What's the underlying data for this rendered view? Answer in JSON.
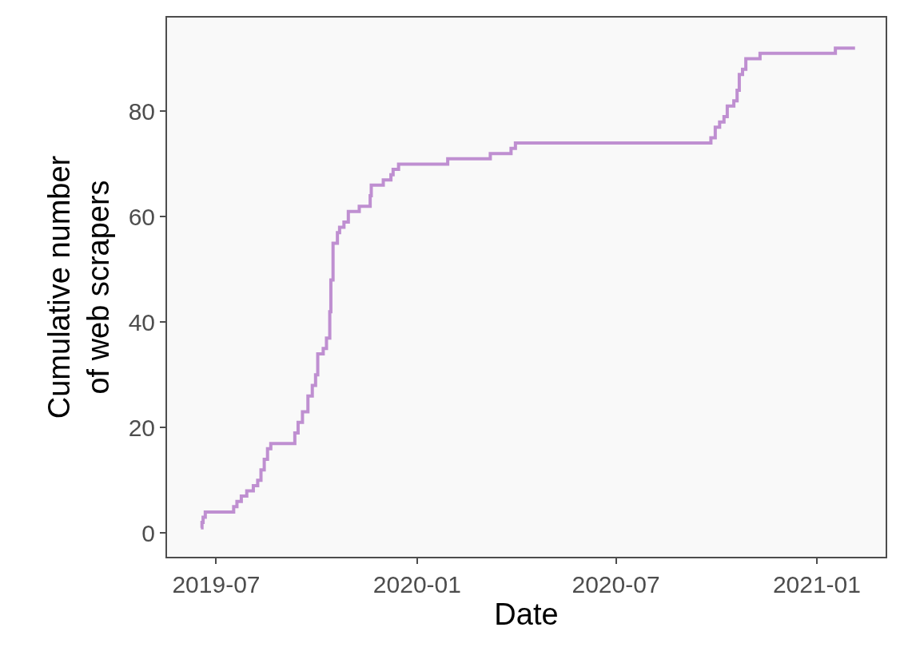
{
  "chart_data": {
    "type": "step",
    "xlabel": "Date",
    "ylabel": "Cumulative number\nof web scrapers",
    "series": [
      {
        "color": "#bf8fd1",
        "x": [
          "2019-06-17",
          "2019-06-18",
          "2019-06-19",
          "2019-06-21",
          "2019-07-17",
          "2019-07-20",
          "2019-07-24",
          "2019-07-29",
          "2019-08-04",
          "2019-08-08",
          "2019-08-11",
          "2019-08-14",
          "2019-08-17",
          "2019-08-20",
          "2019-09-11",
          "2019-09-14",
          "2019-09-18",
          "2019-09-23",
          "2019-09-27",
          "2019-09-30",
          "2019-10-02",
          "2019-10-07",
          "2019-10-10",
          "2019-10-13",
          "2019-10-14",
          "2019-10-16",
          "2019-10-20",
          "2019-10-22",
          "2019-10-26",
          "2019-10-30",
          "2019-11-09",
          "2019-11-19",
          "2019-11-20",
          "2019-12-01",
          "2019-12-08",
          "2019-12-10",
          "2019-12-15",
          "2020-01-29",
          "2020-03-08",
          "2020-03-27",
          "2020-03-31",
          "2020-09-26",
          "2020-09-30",
          "2020-10-04",
          "2020-10-08",
          "2020-10-11",
          "2020-10-17",
          "2020-10-20",
          "2020-10-22",
          "2020-10-25",
          "2020-10-28",
          "2020-11-10",
          "2021-01-18",
          "2021-02-05"
        ],
        "values": [
          1,
          2,
          3,
          4,
          5,
          6,
          7,
          8,
          9,
          10,
          12,
          14,
          16,
          17,
          19,
          21,
          23,
          26,
          28,
          30,
          34,
          35,
          37,
          42,
          48,
          55,
          57,
          58,
          59,
          61,
          62,
          64,
          66,
          67,
          68,
          69,
          70,
          71,
          72,
          73,
          74,
          75,
          77,
          78,
          79,
          81,
          82,
          84,
          87,
          88,
          90,
          91,
          92,
          92
        ]
      }
    ],
    "xlim": [
      "2019-05-17",
      "2021-03-05"
    ],
    "ylim": [
      -4.5,
      97.8
    ],
    "xticks": [
      "2019-07",
      "2020-01",
      "2020-07",
      "2021-01"
    ],
    "yticks": [
      0,
      20,
      40,
      60,
      80
    ],
    "grid": false,
    "marker": "none",
    "line_style": "solid"
  }
}
